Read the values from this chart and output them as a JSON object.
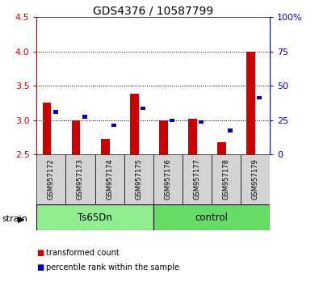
{
  "title": "GDS4376 / 10587799",
  "samples": [
    "GSM957172",
    "GSM957173",
    "GSM957174",
    "GSM957175",
    "GSM957176",
    "GSM957177",
    "GSM957178",
    "GSM957179"
  ],
  "red_values": [
    3.25,
    3.0,
    2.72,
    3.38,
    3.0,
    3.02,
    2.68,
    4.0
  ],
  "blue_values": [
    3.12,
    3.05,
    2.93,
    3.17,
    3.0,
    2.97,
    2.85,
    3.33
  ],
  "ylim_left": [
    2.5,
    4.5
  ],
  "ylim_right": [
    0,
    100
  ],
  "yticks_left": [
    2.5,
    3.0,
    3.5,
    4.0,
    4.5
  ],
  "yticks_right": [
    0,
    25,
    50,
    75,
    100
  ],
  "ytick_labels_right": [
    "0",
    "25",
    "50",
    "75",
    "100%"
  ],
  "bar_bottom": 2.5,
  "red_color": "#CC0000",
  "blue_color": "#0000CC",
  "bar_width": 0.3,
  "sample_bg_color": "#d3d3d3",
  "ts65dn_color": "#90EE90",
  "control_color": "#66DD66",
  "legend_red": "transformed count",
  "legend_blue": "percentile rank within the sample",
  "title_fontsize": 10,
  "tick_fontsize": 8,
  "sample_fontsize": 6,
  "group_fontsize": 8.5,
  "legend_fontsize": 7,
  "strain_fontsize": 8
}
